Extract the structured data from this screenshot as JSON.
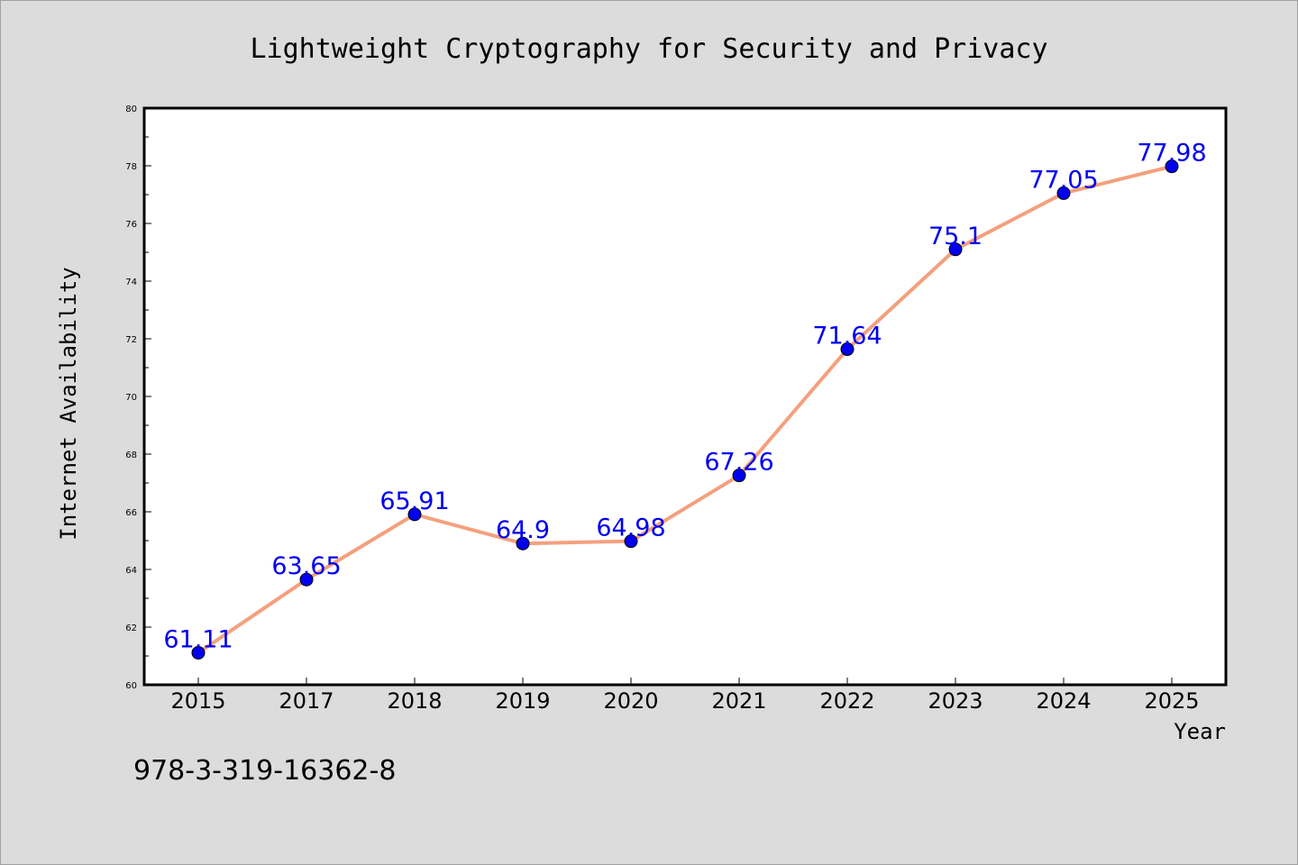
{
  "chart_data": {
    "type": "line",
    "title": "Lightweight Cryptography for Security and Privacy",
    "xlabel": "Year",
    "ylabel": "Internet Availability",
    "categories": [
      "2015",
      "2017",
      "2018",
      "2019",
      "2020",
      "2021",
      "2022",
      "2023",
      "2024",
      "2025"
    ],
    "series": [
      {
        "values": [
          61.11,
          63.65,
          65.91,
          64.9,
          64.98,
          67.26,
          71.64,
          75.1,
          77.05,
          77.98
        ],
        "labels": [
          "61.11",
          "63.65",
          "65.91",
          "64.9",
          "64.98",
          "67.26",
          "71.64",
          "75.1",
          "77.05",
          "77.98"
        ],
        "line_color": "#f4a07e",
        "marker_color": "#0000ee",
        "label_color": "#0000ee"
      }
    ],
    "ylim": [
      60,
      80
    ],
    "yticks": [
      60,
      62,
      64,
      66,
      68,
      70,
      72,
      74,
      76,
      78,
      80
    ],
    "grid": false,
    "legend": "none"
  },
  "footer_text": "978-3-319-16362-8",
  "colors": {
    "background": "#dcdcdc",
    "plot_background": "#ffffff",
    "axis": "#000000"
  }
}
